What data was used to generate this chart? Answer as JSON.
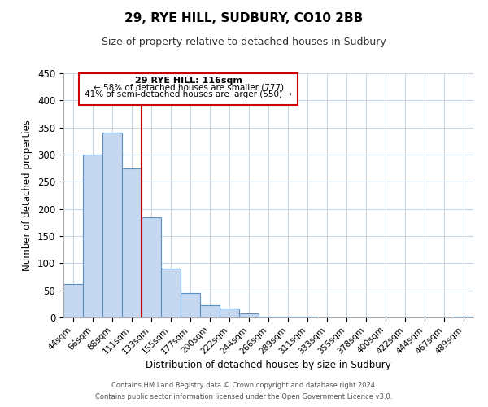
{
  "title": "29, RYE HILL, SUDBURY, CO10 2BB",
  "subtitle": "Size of property relative to detached houses in Sudbury",
  "xlabel": "Distribution of detached houses by size in Sudbury",
  "ylabel": "Number of detached properties",
  "bar_labels": [
    "44sqm",
    "66sqm",
    "88sqm",
    "111sqm",
    "133sqm",
    "155sqm",
    "177sqm",
    "200sqm",
    "222sqm",
    "244sqm",
    "266sqm",
    "289sqm",
    "311sqm",
    "333sqm",
    "355sqm",
    "378sqm",
    "400sqm",
    "422sqm",
    "444sqm",
    "467sqm",
    "489sqm"
  ],
  "bar_values": [
    62,
    300,
    340,
    275,
    185,
    90,
    45,
    23,
    16,
    7,
    2,
    1,
    1,
    0,
    0,
    0,
    0,
    0,
    0,
    0,
    2
  ],
  "bar_color": "#c5d8f0",
  "bar_edge_color": "#5a8fc2",
  "vline_color": "#cc0000",
  "ylim": [
    0,
    450
  ],
  "yticks": [
    0,
    50,
    100,
    150,
    200,
    250,
    300,
    350,
    400,
    450
  ],
  "annotation_title": "29 RYE HILL: 116sqm",
  "annotation_line1": "← 58% of detached houses are smaller (777)",
  "annotation_line2": "41% of semi-detached houses are larger (550) →",
  "annotation_box_color": "#ffffff",
  "annotation_box_edge": "#cc0000",
  "footer_line1": "Contains HM Land Registry data © Crown copyright and database right 2024.",
  "footer_line2": "Contains public sector information licensed under the Open Government Licence v3.0.",
  "background_color": "#ffffff",
  "grid_color": "#c8d8e8",
  "title_fontsize": 11,
  "subtitle_fontsize": 9
}
